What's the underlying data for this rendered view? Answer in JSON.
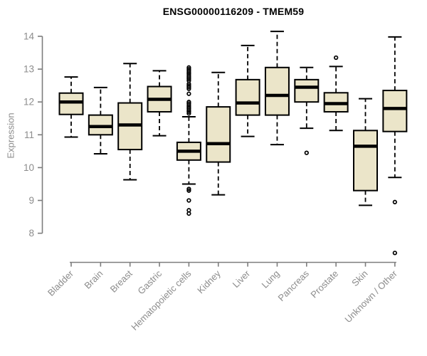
{
  "chart_data": {
    "type": "box",
    "title": "ENSG00000116209 - TMEM59",
    "ylabel": "Expression",
    "xlabel": "",
    "ylim": [
      8,
      14
    ],
    "yticks": [
      8,
      9,
      10,
      11,
      12,
      13,
      14
    ],
    "grid": false,
    "legend": "none",
    "categories": [
      "Bladder",
      "Brain",
      "Breast",
      "Gastric",
      "Hematopoietic cells",
      "Kidney",
      "Liver",
      "Lung",
      "Pancreas",
      "Prostate",
      "Skin",
      "Unknown / Other"
    ],
    "series": [
      {
        "category": "Bladder",
        "low": 10.93,
        "q1": 11.62,
        "median": 12.0,
        "q3": 12.27,
        "high": 12.76,
        "outliers": []
      },
      {
        "category": "Brain",
        "low": 10.42,
        "q1": 11.0,
        "median": 11.25,
        "q3": 11.6,
        "high": 12.44,
        "outliers": []
      },
      {
        "category": "Breast",
        "low": 9.63,
        "q1": 10.55,
        "median": 11.3,
        "q3": 11.97,
        "high": 13.17,
        "outliers": []
      },
      {
        "category": "Gastric",
        "low": 10.97,
        "q1": 11.7,
        "median": 12.08,
        "q3": 12.47,
        "high": 12.95,
        "outliers": []
      },
      {
        "category": "Hematopoietic cells",
        "low": 9.5,
        "q1": 10.23,
        "median": 10.5,
        "q3": 10.77,
        "high": 11.55,
        "outliers": [
          13.05,
          13.0,
          12.95,
          12.9,
          12.85,
          12.8,
          12.75,
          12.7,
          12.65,
          12.55,
          12.5,
          12.45,
          12.4,
          12.25,
          12.0,
          11.95,
          11.9,
          11.85,
          11.8,
          11.75,
          11.7,
          11.65,
          9.35,
          9.3,
          9.0,
          8.7,
          8.6
        ]
      },
      {
        "category": "Kidney",
        "low": 9.17,
        "q1": 10.17,
        "median": 10.73,
        "q3": 11.85,
        "high": 12.9,
        "outliers": []
      },
      {
        "category": "Liver",
        "low": 10.95,
        "q1": 11.6,
        "median": 11.97,
        "q3": 12.68,
        "high": 13.72,
        "outliers": []
      },
      {
        "category": "Lung",
        "low": 10.7,
        "q1": 11.6,
        "median": 12.2,
        "q3": 13.05,
        "high": 14.15,
        "outliers": []
      },
      {
        "category": "Pancreas",
        "low": 11.2,
        "q1": 12.0,
        "median": 12.45,
        "q3": 12.68,
        "high": 13.05,
        "outliers": [
          10.45
        ]
      },
      {
        "category": "Prostate",
        "low": 11.13,
        "q1": 11.7,
        "median": 11.95,
        "q3": 12.28,
        "high": 13.08,
        "outliers": [
          13.35
        ]
      },
      {
        "category": "Skin",
        "low": 8.85,
        "q1": 9.3,
        "median": 10.65,
        "q3": 11.13,
        "high": 12.1,
        "outliers": []
      },
      {
        "category": "Unknown / Other",
        "low": 9.7,
        "q1": 11.1,
        "median": 11.8,
        "q3": 12.35,
        "high": 13.98,
        "outliers": [
          8.95,
          7.4
        ]
      }
    ],
    "colors": {
      "box_fill": "#EBE5C9",
      "box_stroke": "#000000",
      "median": "#000000",
      "whisker": "#000000",
      "axis": "#7d7d7d",
      "tick_label": "#8c8c8c",
      "title": "#000000",
      "background": "#ffffff"
    }
  }
}
